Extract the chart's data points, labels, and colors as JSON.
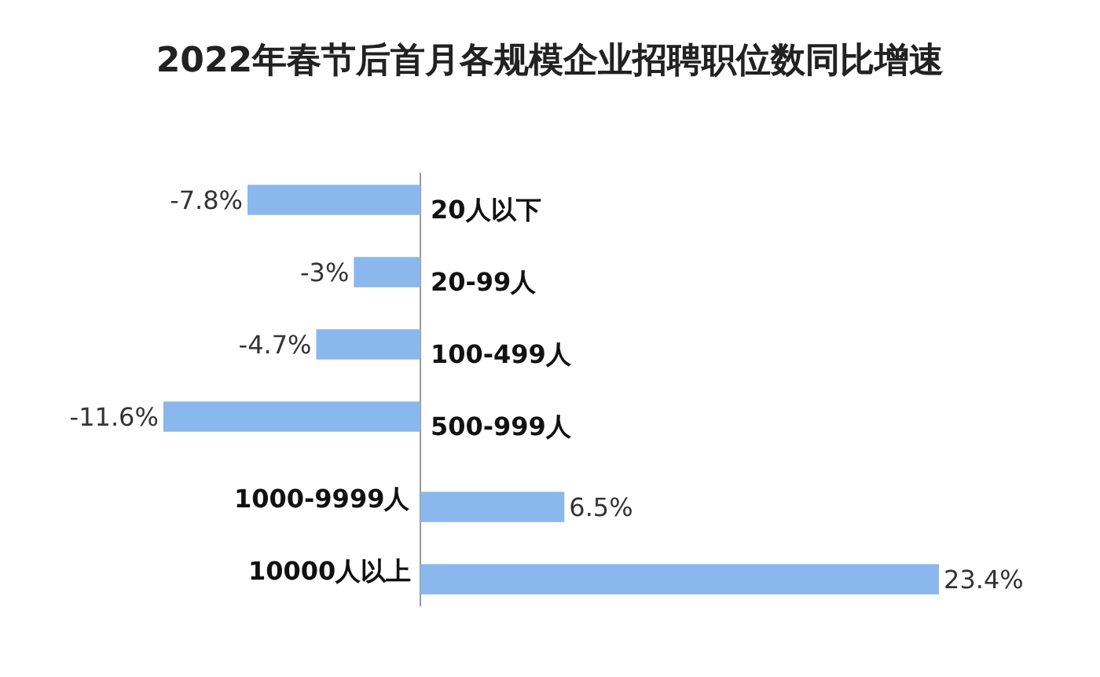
{
  "chart_data": {
    "type": "bar",
    "orientation": "horizontal",
    "title": "2022年春节后首月各规模企业招聘职位数同比增速",
    "categories": [
      "20人以下",
      "20-99人",
      "100-499人",
      "500-999人",
      "1000-9999人",
      "10000人以上"
    ],
    "values": [
      -7.8,
      -3,
      -4.7,
      -11.6,
      6.5,
      23.4
    ],
    "value_labels": [
      "-7.8%",
      "-3%",
      "-4.7%",
      "-11.6%",
      "6.5%",
      "23.4%"
    ],
    "color": "#8ab8ec",
    "grid": false,
    "legend": false,
    "tick_labels": "y"
  }
}
